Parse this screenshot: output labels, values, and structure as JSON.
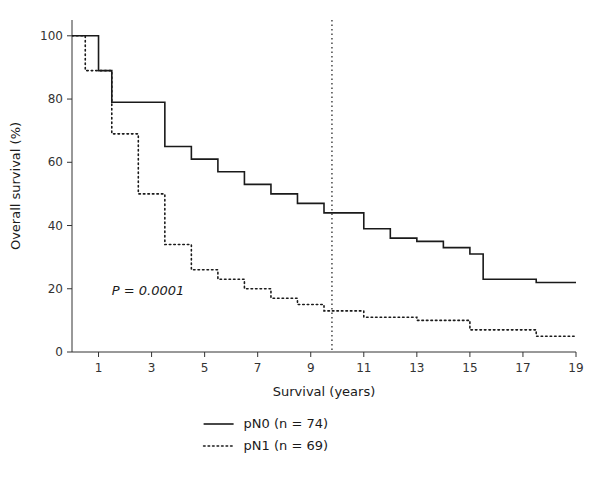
{
  "chart_data": {
    "type": "step",
    "xlabel": "Survival (years)",
    "ylabel": "Overall survival (%)",
    "xlim": [
      0,
      19
    ],
    "ylim": [
      0,
      105
    ],
    "xticks": [
      1,
      3,
      5,
      7,
      9,
      11,
      13,
      15,
      17,
      19
    ],
    "yticks": [
      0,
      20,
      40,
      60,
      80,
      100
    ],
    "legend": "bottom",
    "grid": false,
    "series": [
      {
        "name": "pN0 (n = 74)",
        "color": "#1a1a1a",
        "line_style": "solid",
        "x": [
          0,
          0.5,
          1.0,
          1.0,
          1.5,
          2.0,
          2.5,
          3.0,
          3.5,
          4.0,
          4.5,
          5.0,
          5.5,
          6.0,
          6.5,
          7.0,
          7.5,
          8.0,
          8.5,
          9.0,
          9.5,
          10.0,
          11.0,
          12.0,
          13.0,
          14.0,
          15.0,
          15.5,
          16.0,
          17.0,
          17.5,
          19.0
        ],
        "values": [
          100,
          100,
          89,
          89,
          79,
          79,
          79,
          79,
          65,
          65,
          61,
          61,
          57,
          57,
          53,
          53,
          50,
          50,
          47,
          47,
          44,
          44,
          39,
          36,
          35,
          33,
          31,
          23,
          23,
          23,
          22,
          22
        ]
      },
      {
        "name": "pN1 (n = 69)",
        "color": "#1a1a1a",
        "line_style": "dotted",
        "x": [
          0,
          0.5,
          1.0,
          1.5,
          2.0,
          2.5,
          3.0,
          3.5,
          4.0,
          4.5,
          5.0,
          5.5,
          6.0,
          6.5,
          7.0,
          7.5,
          8.0,
          8.5,
          9.0,
          9.5,
          10.0,
          11.0,
          12.0,
          13.0,
          14.0,
          15.0,
          16.0,
          17.0,
          17.5,
          19.0
        ],
        "values": [
          100,
          89,
          89,
          69,
          69,
          50,
          50,
          34,
          34,
          26,
          26,
          23,
          23,
          20,
          20,
          17,
          17,
          15,
          15,
          13,
          13,
          11,
          11,
          10,
          10,
          7,
          7,
          7,
          5,
          5
        ]
      }
    ],
    "vlines": [
      {
        "x": 9.8,
        "color": "#1a1a1a",
        "line_style": "dotted"
      }
    ],
    "annotations": [
      {
        "text": "P = 0.0001",
        "x": 1.5,
        "y": 18,
        "color": "#1a1a1a"
      }
    ]
  }
}
